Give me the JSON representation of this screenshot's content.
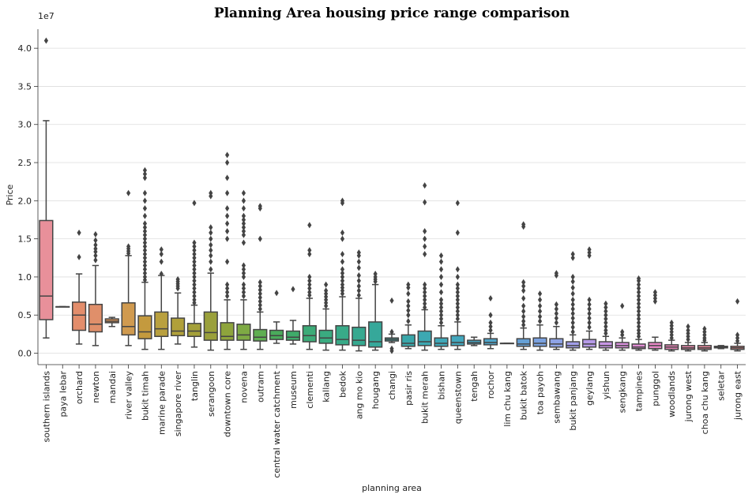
{
  "chart_data": {
    "type": "box",
    "title": "Planning Area housing price range comparison",
    "xlabel": "planning area",
    "ylabel": "Price",
    "y_multiplier": "1e7",
    "ylim": [
      -0.15,
      4.25
    ],
    "yticks": [
      "0.0",
      "0.5",
      "1.0",
      "1.5",
      "2.0",
      "2.5",
      "3.0",
      "3.5",
      "4.0"
    ],
    "grid": "horizontal",
    "boxes": [
      {
        "category": "southern islands",
        "color": "#e8909a",
        "whislo": 0.2,
        "q1": 0.44,
        "med": 0.75,
        "q3": 1.74,
        "whishi": 3.05,
        "fliers": [
          4.1
        ]
      },
      {
        "category": "paya lebar",
        "color": "#e89685",
        "whislo": 0.61,
        "q1": 0.61,
        "med": 0.61,
        "q3": 0.61,
        "whishi": 0.61,
        "fliers": []
      },
      {
        "category": "orchard",
        "color": "#e38d6b",
        "whislo": 0.12,
        "q1": 0.3,
        "med": 0.5,
        "q3": 0.67,
        "whishi": 1.04,
        "fliers": [
          1.26,
          1.58
        ]
      },
      {
        "category": "newton",
        "color": "#e08f6a",
        "whislo": 0.1,
        "q1": 0.28,
        "med": 0.38,
        "q3": 0.64,
        "whishi": 1.15,
        "fliers": [
          1.22,
          1.28,
          1.33,
          1.37,
          1.42,
          1.48,
          1.56
        ]
      },
      {
        "category": "mandai",
        "color": "#d99155",
        "whislo": 0.35,
        "q1": 0.4,
        "med": 0.42,
        "q3": 0.45,
        "whishi": 0.47,
        "fliers": []
      },
      {
        "category": "river valley",
        "color": "#d09a4f",
        "whislo": 0.1,
        "q1": 0.24,
        "med": 0.35,
        "q3": 0.66,
        "whishi": 1.28,
        "fliers": [
          1.31,
          1.34,
          1.37,
          1.4,
          2.1
        ]
      },
      {
        "category": "bukit timah",
        "color": "#c49a3e",
        "whislo": 0.05,
        "q1": 0.19,
        "med": 0.28,
        "q3": 0.49,
        "whishi": 0.93,
        "fliers": [
          0.96,
          1.0,
          1.05,
          1.1,
          1.15,
          1.2,
          1.25,
          1.3,
          1.35,
          1.4,
          1.45,
          1.5,
          1.55,
          1.6,
          1.65,
          1.7,
          1.8,
          1.9,
          2.0,
          2.1,
          2.3,
          2.35,
          2.4
        ]
      },
      {
        "category": "marine parade",
        "color": "#b9a03f",
        "whislo": 0.05,
        "q1": 0.22,
        "med": 0.32,
        "q3": 0.54,
        "whishi": 1.02,
        "fliers": [
          1.04,
          1.2,
          1.3,
          1.36
        ]
      },
      {
        "category": "singapore river",
        "color": "#b0a03a",
        "whislo": 0.12,
        "q1": 0.23,
        "med": 0.29,
        "q3": 0.46,
        "whishi": 0.79,
        "fliers": [
          0.85,
          0.88,
          0.91,
          0.94,
          0.97
        ]
      },
      {
        "category": "tanglin",
        "color": "#a4a039",
        "whislo": 0.08,
        "q1": 0.22,
        "med": 0.29,
        "q3": 0.39,
        "whishi": 0.63,
        "fliers": [
          0.66,
          0.7,
          0.75,
          0.8,
          0.85,
          0.9,
          0.95,
          1.0,
          1.05,
          1.1,
          1.15,
          1.2,
          1.25,
          1.3,
          1.35,
          1.4,
          1.45,
          1.97
        ]
      },
      {
        "category": "serangoon",
        "color": "#9aa03b",
        "whislo": 0.04,
        "q1": 0.17,
        "med": 0.27,
        "q3": 0.54,
        "whishi": 1.05,
        "fliers": [
          1.1,
          1.2,
          1.28,
          1.35,
          1.42,
          1.5,
          1.58,
          1.65,
          2.06,
          2.1
        ]
      },
      {
        "category": "downtown core",
        "color": "#8ea43c",
        "whislo": 0.05,
        "q1": 0.17,
        "med": 0.22,
        "q3": 0.4,
        "whishi": 0.7,
        "fliers": [
          0.75,
          0.8,
          0.85,
          0.9,
          1.2,
          1.5,
          1.6,
          1.7,
          1.8,
          1.9,
          2.1,
          2.3,
          2.5,
          2.6
        ]
      },
      {
        "category": "novena",
        "color": "#7eaa44",
        "whislo": 0.05,
        "q1": 0.17,
        "med": 0.24,
        "q3": 0.38,
        "whishi": 0.7,
        "fliers": [
          0.75,
          0.8,
          0.85,
          0.9,
          1.0,
          1.05,
          1.1,
          1.15,
          1.45,
          1.55,
          1.6,
          1.65,
          1.7,
          1.75,
          1.8,
          1.9,
          2.0,
          2.1
        ]
      },
      {
        "category": "outram",
        "color": "#5fae53",
        "whislo": 0.05,
        "q1": 0.16,
        "med": 0.21,
        "q3": 0.31,
        "whishi": 0.54,
        "fliers": [
          0.58,
          0.63,
          0.68,
          0.73,
          0.78,
          0.83,
          0.88,
          0.93,
          1.5,
          1.9,
          1.93
        ]
      },
      {
        "category": "central water catchment",
        "color": "#4aab5b",
        "whislo": 0.13,
        "q1": 0.18,
        "med": 0.23,
        "q3": 0.3,
        "whishi": 0.41,
        "fliers": [
          0.79
        ]
      },
      {
        "category": "museum",
        "color": "#3fab6a",
        "whislo": 0.12,
        "q1": 0.17,
        "med": 0.21,
        "q3": 0.29,
        "whishi": 0.43,
        "fliers": [
          0.84
        ]
      },
      {
        "category": "clementi",
        "color": "#3cab78",
        "whislo": 0.05,
        "q1": 0.15,
        "med": 0.23,
        "q3": 0.36,
        "whishi": 0.72,
        "fliers": [
          0.76,
          0.8,
          0.85,
          0.9,
          0.95,
          1.0,
          1.3,
          1.35,
          1.68
        ]
      },
      {
        "category": "kallang",
        "color": "#3aab80",
        "whislo": 0.04,
        "q1": 0.13,
        "med": 0.2,
        "q3": 0.3,
        "whishi": 0.58,
        "fliers": [
          0.62,
          0.66,
          0.7,
          0.74,
          0.78,
          0.82,
          0.9
        ]
      },
      {
        "category": "bedok",
        "color": "#38aa88",
        "whislo": 0.04,
        "q1": 0.11,
        "med": 0.18,
        "q3": 0.36,
        "whishi": 0.74,
        "fliers": [
          0.78,
          0.82,
          0.86,
          0.9,
          0.95,
          1.0,
          1.05,
          1.1,
          1.2,
          1.3,
          1.5,
          1.58,
          1.97,
          2.0
        ]
      },
      {
        "category": "ang mo kio",
        "color": "#36a990",
        "whislo": 0.03,
        "q1": 0.1,
        "med": 0.17,
        "q3": 0.34,
        "whishi": 0.72,
        "fliers": [
          0.76,
          0.82,
          0.88,
          0.95,
          1.02,
          1.12,
          1.2,
          1.28,
          1.32
        ]
      },
      {
        "category": "hougang",
        "color": "#36a89a",
        "whislo": 0.04,
        "q1": 0.08,
        "med": 0.15,
        "q3": 0.41,
        "whishi": 0.9,
        "fliers": [
          0.94,
          0.97,
          1.0,
          1.04
        ]
      },
      {
        "category": "changi",
        "color": "#38a8a4",
        "whislo": 0.14,
        "q1": 0.16,
        "med": 0.18,
        "q3": 0.2,
        "whishi": 0.25,
        "fliers": [
          0.03,
          0.06,
          0.28,
          0.69
        ]
      },
      {
        "category": "pasir ris",
        "color": "#39a7aa",
        "whislo": 0.06,
        "q1": 0.09,
        "med": 0.13,
        "q3": 0.24,
        "whishi": 0.37,
        "fliers": [
          0.42,
          0.5,
          0.56,
          0.62,
          0.68,
          0.78,
          0.86,
          0.9
        ]
      },
      {
        "category": "bukit merah",
        "color": "#3ca8b2",
        "whislo": 0.04,
        "q1": 0.1,
        "med": 0.15,
        "q3": 0.29,
        "whishi": 0.57,
        "fliers": [
          0.6,
          0.65,
          0.7,
          0.75,
          0.8,
          0.85,
          0.9,
          1.3,
          1.4,
          1.5,
          1.6,
          1.98,
          2.2
        ]
      },
      {
        "category": "bishan",
        "color": "#40a8b8",
        "whislo": 0.05,
        "q1": 0.09,
        "med": 0.13,
        "q3": 0.2,
        "whishi": 0.36,
        "fliers": [
          0.4,
          0.45,
          0.5,
          0.55,
          0.6,
          0.65,
          0.7,
          0.8,
          0.9,
          1.0,
          1.1,
          1.2,
          1.28
        ]
      },
      {
        "category": "queenstown",
        "color": "#43a7bd",
        "whislo": 0.05,
        "q1": 0.1,
        "med": 0.14,
        "q3": 0.23,
        "whishi": 0.41,
        "fliers": [
          0.45,
          0.5,
          0.55,
          0.6,
          0.65,
          0.7,
          0.75,
          0.8,
          0.85,
          0.9,
          1.0,
          1.1,
          1.58,
          1.97
        ]
      },
      {
        "category": "tengah",
        "color": "#46a6c4",
        "whislo": 0.1,
        "q1": 0.12,
        "med": 0.14,
        "q3": 0.17,
        "whishi": 0.21,
        "fliers": []
      },
      {
        "category": "rochor",
        "color": "#4ea4c9",
        "whislo": 0.06,
        "q1": 0.11,
        "med": 0.14,
        "q3": 0.19,
        "whishi": 0.26,
        "fliers": [
          0.3,
          0.35,
          0.4,
          0.5,
          0.72
        ]
      },
      {
        "category": "lim chu kang",
        "color": "#5aa1cc",
        "whislo": 0.13,
        "q1": 0.13,
        "med": 0.13,
        "q3": 0.13,
        "whishi": 0.13,
        "fliers": []
      },
      {
        "category": "bukit batok",
        "color": "#65a0d6",
        "whislo": 0.05,
        "q1": 0.09,
        "med": 0.12,
        "q3": 0.19,
        "whishi": 0.33,
        "fliers": [
          0.37,
          0.42,
          0.48,
          0.55,
          0.62,
          0.72,
          0.82,
          0.88,
          0.93,
          1.66,
          1.69
        ]
      },
      {
        "category": "toa payoh",
        "color": "#7ba2e0",
        "whislo": 0.04,
        "q1": 0.09,
        "med": 0.13,
        "q3": 0.2,
        "whishi": 0.37,
        "fliers": [
          0.42,
          0.48,
          0.55,
          0.62,
          0.7,
          0.78
        ]
      },
      {
        "category": "sembawang",
        "color": "#8ea3e6",
        "whislo": 0.05,
        "q1": 0.08,
        "med": 0.12,
        "q3": 0.19,
        "whishi": 0.35,
        "fliers": [
          0.4,
          0.46,
          0.52,
          0.58,
          0.64,
          1.02,
          1.05
        ]
      },
      {
        "category": "bukit panjang",
        "color": "#a29ee9",
        "whislo": 0.04,
        "q1": 0.07,
        "med": 0.1,
        "q3": 0.15,
        "whishi": 0.24,
        "fliers": [
          0.28,
          0.34,
          0.4,
          0.46,
          0.52,
          0.58,
          0.64,
          0.7,
          0.78,
          0.86,
          0.94,
          1.0,
          1.25,
          1.3
        ]
      },
      {
        "category": "geylang",
        "color": "#b69ae8",
        "whislo": 0.05,
        "q1": 0.08,
        "med": 0.12,
        "q3": 0.18,
        "whishi": 0.29,
        "fliers": [
          0.34,
          0.4,
          0.46,
          0.52,
          0.58,
          0.64,
          0.7,
          1.28,
          1.32,
          1.36
        ]
      },
      {
        "category": "yishun",
        "color": "#c896e6",
        "whislo": 0.04,
        "q1": 0.07,
        "med": 0.1,
        "q3": 0.15,
        "whishi": 0.22,
        "fliers": [
          0.26,
          0.3,
          0.35,
          0.4,
          0.45,
          0.5,
          0.55,
          0.6,
          0.65
        ]
      },
      {
        "category": "sengkang",
        "color": "#d88fdc",
        "whislo": 0.04,
        "q1": 0.07,
        "med": 0.1,
        "q3": 0.14,
        "whishi": 0.2,
        "fliers": [
          0.24,
          0.28,
          0.62
        ]
      },
      {
        "category": "tampines",
        "color": "#e18cd5",
        "whislo": 0.04,
        "q1": 0.06,
        "med": 0.08,
        "q3": 0.12,
        "whishi": 0.18,
        "fliers": [
          0.22,
          0.26,
          0.3,
          0.35,
          0.4,
          0.45,
          0.5,
          0.55,
          0.6,
          0.65,
          0.7,
          0.75,
          0.8,
          0.85,
          0.9,
          0.95,
          0.98
        ]
      },
      {
        "category": "punggol",
        "color": "#ea88c8",
        "whislo": 0.04,
        "q1": 0.06,
        "med": 0.1,
        "q3": 0.14,
        "whishi": 0.21,
        "fliers": [
          0.68,
          0.72,
          0.76,
          0.8
        ]
      },
      {
        "category": "woodlands",
        "color": "#ec87bb",
        "whislo": 0.03,
        "q1": 0.05,
        "med": 0.08,
        "q3": 0.11,
        "whishi": 0.17,
        "fliers": [
          0.2,
          0.24,
          0.28,
          0.32,
          0.36,
          0.4
        ]
      },
      {
        "category": "jurong west",
        "color": "#ed88ad",
        "whislo": 0.03,
        "q1": 0.05,
        "med": 0.07,
        "q3": 0.1,
        "whishi": 0.14,
        "fliers": [
          0.18,
          0.22,
          0.26,
          0.3,
          0.35
        ]
      },
      {
        "category": "choa chu kang",
        "color": "#ed899f",
        "whislo": 0.03,
        "q1": 0.05,
        "med": 0.07,
        "q3": 0.1,
        "whishi": 0.14,
        "fliers": [
          0.17,
          0.2,
          0.24,
          0.28,
          0.32
        ]
      },
      {
        "category": "seletar",
        "color": "#ec8b94",
        "whislo": 0.06,
        "q1": 0.07,
        "med": 0.08,
        "q3": 0.09,
        "whishi": 0.1,
        "fliers": []
      },
      {
        "category": "jurong east",
        "color": "#eb8c8a",
        "whislo": 0.03,
        "q1": 0.05,
        "med": 0.07,
        "q3": 0.09,
        "whishi": 0.13,
        "fliers": [
          0.16,
          0.2,
          0.24,
          0.68
        ]
      }
    ]
  }
}
